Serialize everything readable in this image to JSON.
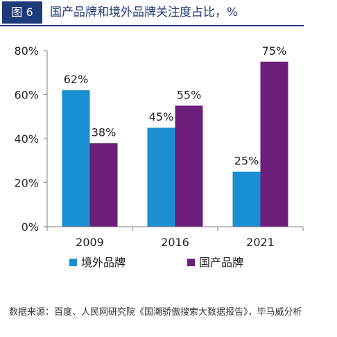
{
  "header": {
    "figure_label": "图 6",
    "title": "国产品牌和境外品牌关注度占比，%"
  },
  "chart_data": {
    "type": "bar",
    "title": "国产品牌和境外品牌关注度占比，%",
    "categories": [
      "2009",
      "2016",
      "2021"
    ],
    "series": [
      {
        "name": "境外品牌",
        "values": [
          62,
          45,
          25
        ],
        "color": "#1a8fd1"
      },
      {
        "name": "国产品牌",
        "values": [
          38,
          55,
          75
        ],
        "color": "#6b1f7a"
      }
    ],
    "yticks": [
      "0%",
      "20%",
      "40%",
      "60%",
      "80%"
    ],
    "ytick_values": [
      0,
      20,
      40,
      60,
      80
    ],
    "ylim": [
      0,
      80
    ],
    "value_suffix": "%",
    "grid": false,
    "legend_position": "bottom"
  },
  "source_note": "数据来源：百度、人民网研究院《国潮骄傲搜索大数据报告》，毕马威分析"
}
